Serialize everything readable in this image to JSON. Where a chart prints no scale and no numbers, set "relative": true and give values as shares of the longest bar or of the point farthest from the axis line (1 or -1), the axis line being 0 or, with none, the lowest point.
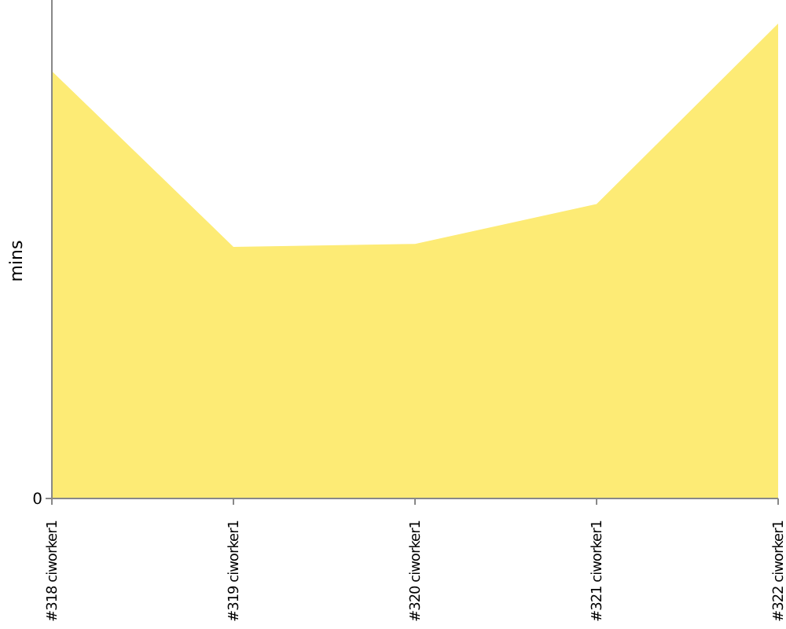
{
  "chart_data": {
    "type": "area",
    "ylabel": "mins",
    "relative": true,
    "annotations": [
      "0"
    ],
    "categories": [
      "#318 ciworker1",
      "#319 ciworker1",
      "#320 ciworker1",
      "#321 ciworker1",
      "#322 ciworker1"
    ],
    "series": [
      {
        "color": "#fdeb75",
        "values": [
          0.9,
          0.53,
          0.536,
          0.62,
          1
        ]
      }
    ]
  }
}
